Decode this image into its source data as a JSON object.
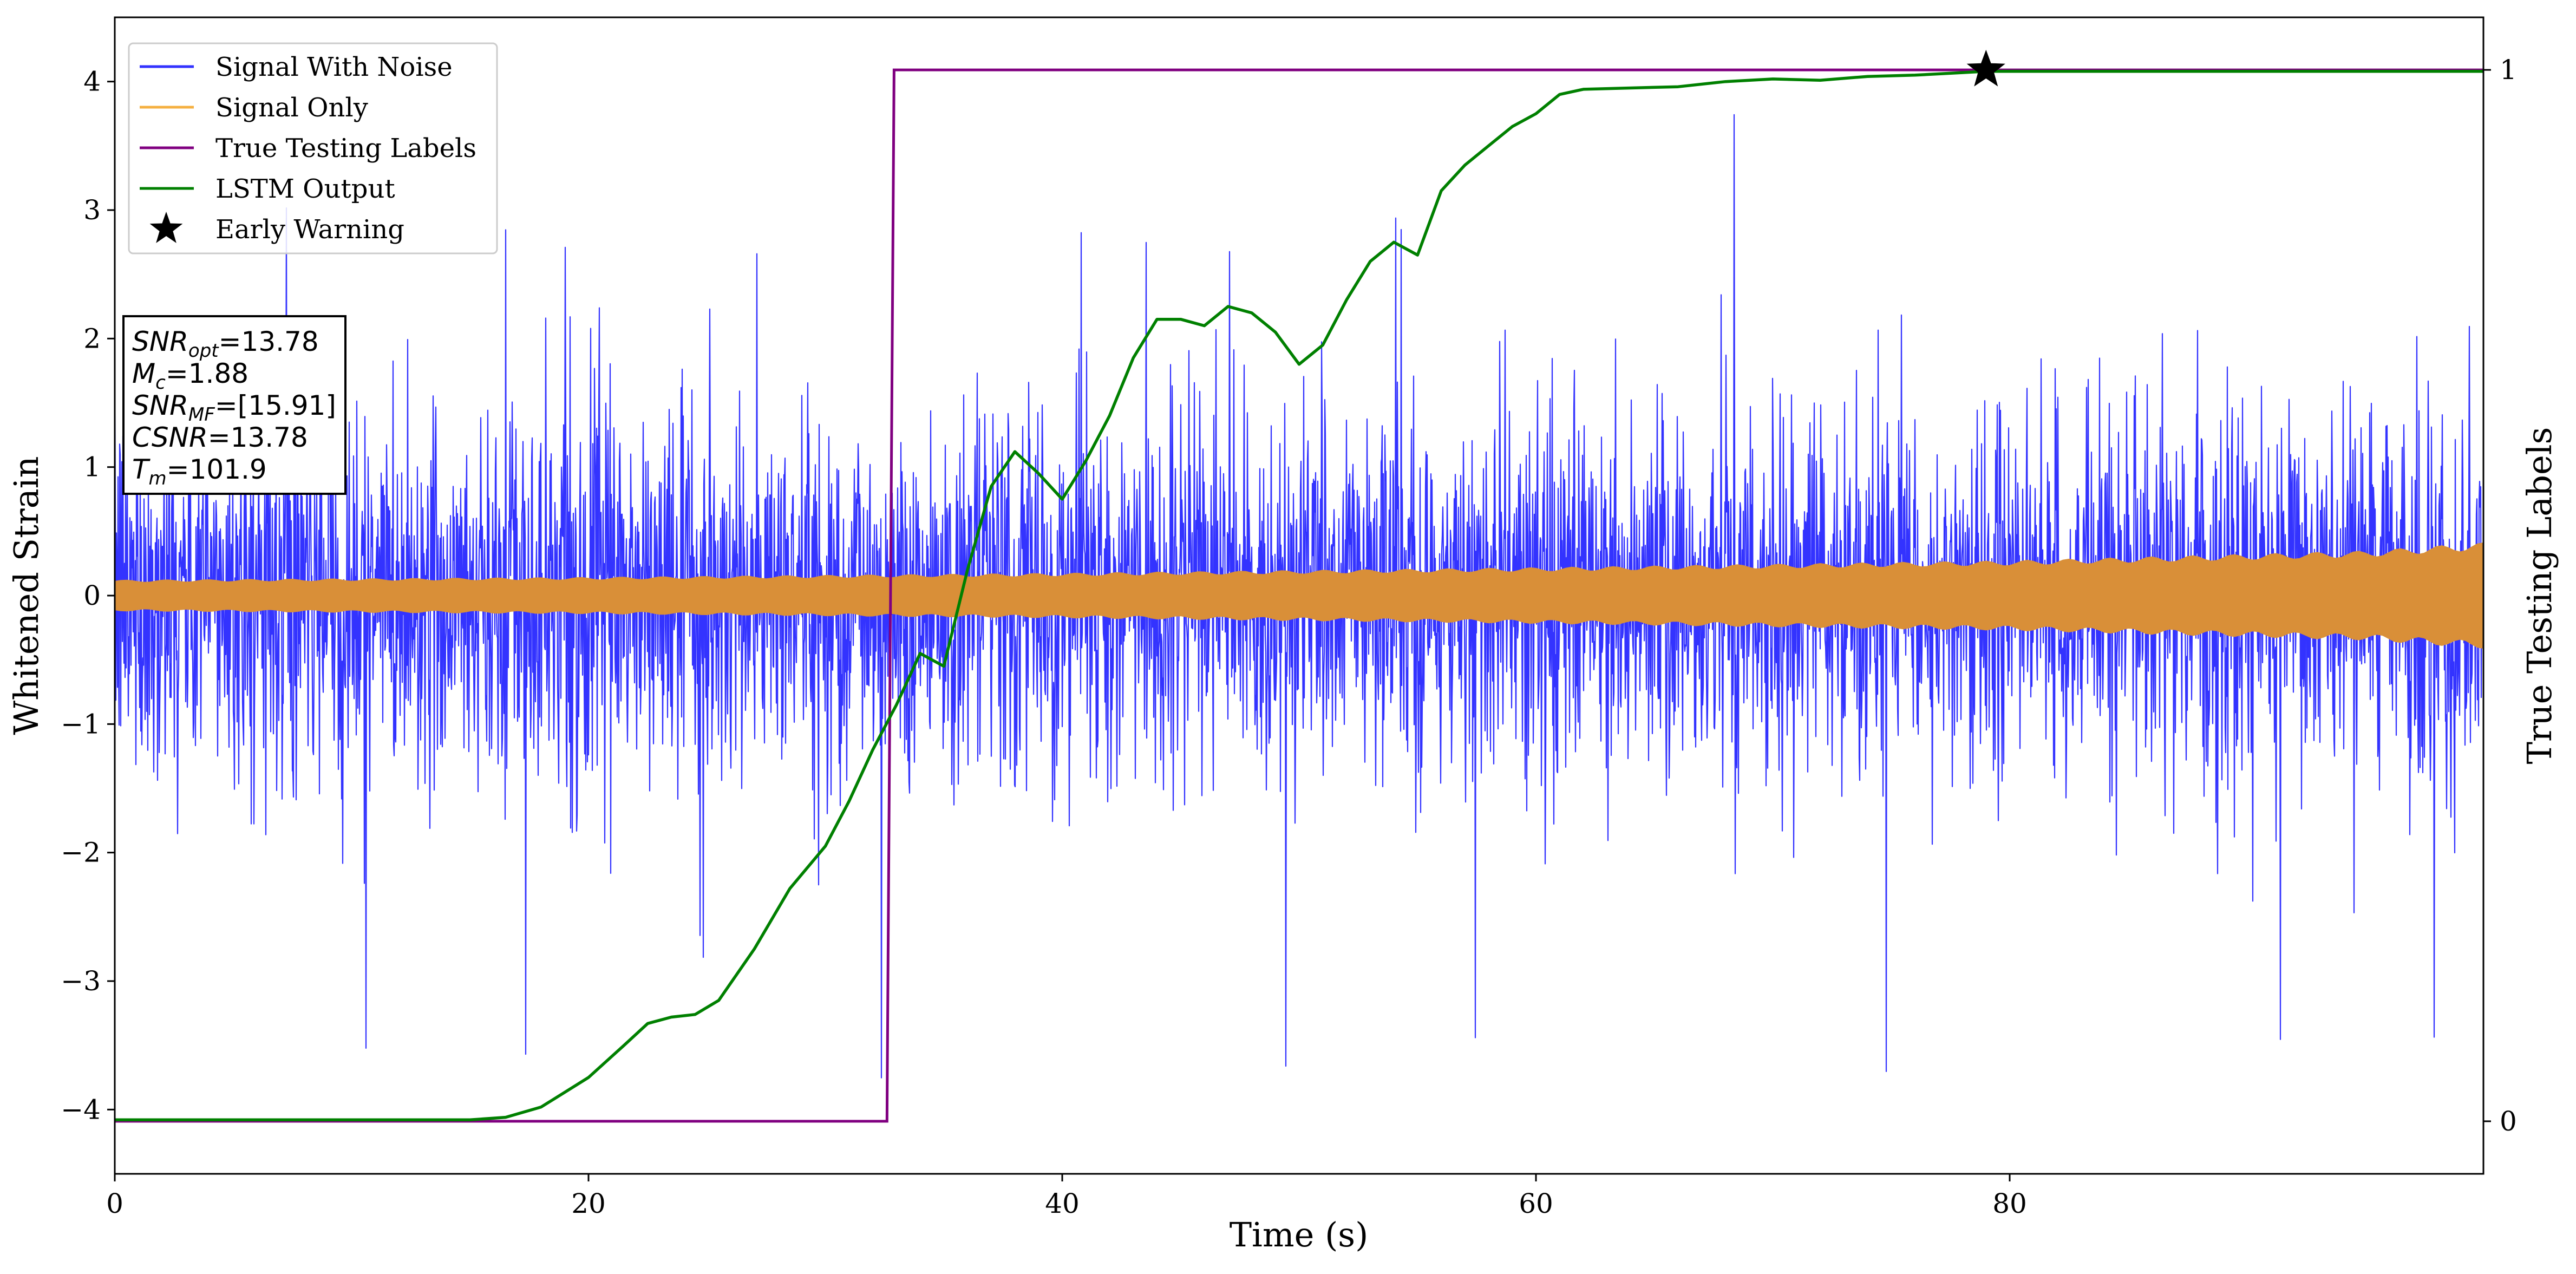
{
  "chart_data": {
    "type": "line",
    "xlabel": "Time (s)",
    "ylabel": "Whitened Strain",
    "ylabel_right": "True Testing Labels",
    "xlim": [
      0,
      100
    ],
    "ylim": [
      -4.5,
      4.5
    ],
    "ylim_right": [
      -0.05,
      1.05
    ],
    "x_ticks": [
      0,
      20,
      40,
      60,
      80
    ],
    "y_ticks": [
      -4,
      -3,
      -2,
      -1,
      0,
      1,
      2,
      3,
      4
    ],
    "y_ticks_right": [
      0,
      1
    ],
    "grid": false,
    "legend_position": "top-left",
    "legend": [
      {
        "label": "Signal With Noise",
        "color": "#3333ff",
        "marker": "line"
      },
      {
        "label": "Signal Only",
        "color": "#f5b041",
        "marker": "line"
      },
      {
        "label": "True Testing Labels",
        "color": "#800080",
        "marker": "line"
      },
      {
        "label": "LSTM Output",
        "color": "#008000",
        "marker": "line"
      },
      {
        "label": "Early Warning",
        "color": "#000000",
        "marker": "star"
      }
    ],
    "series": [
      {
        "name": "Signal With Noise",
        "color": "#3333ff",
        "axis": "left",
        "kind": "noise",
        "typical_abs_max": 2.3,
        "extreme_min": -3.85,
        "extreme_max": 4.05
      },
      {
        "name": "Signal Only",
        "color": "#d98f38",
        "axis": "left",
        "kind": "envelope",
        "x": [
          0,
          20,
          40,
          60,
          80,
          95,
          100
        ],
        "amplitude": [
          0.11,
          0.13,
          0.16,
          0.2,
          0.25,
          0.32,
          0.38
        ]
      },
      {
        "name": "True Testing Labels",
        "color": "#800080",
        "axis": "right",
        "kind": "step",
        "x": [
          0,
          32.6,
          32.9,
          100
        ],
        "y": [
          0,
          0,
          1,
          1
        ]
      },
      {
        "name": "LSTM Output",
        "color": "#008000",
        "axis": "left",
        "kind": "line",
        "x": [
          0,
          15,
          16.5,
          18,
          20,
          21.5,
          22.5,
          23.5,
          24.5,
          25.5,
          27,
          28.5,
          30,
          31,
          32,
          33,
          34,
          35,
          36,
          37,
          38,
          39,
          40,
          41,
          42,
          43,
          44,
          45,
          46,
          47,
          48,
          49,
          50,
          51,
          52,
          53,
          54,
          55,
          56,
          57,
          58,
          59,
          60,
          61,
          62,
          64,
          66,
          68,
          70,
          72,
          74,
          76,
          78,
          79,
          82,
          90,
          100
        ],
        "y": [
          -4.08,
          -4.08,
          -4.06,
          -3.98,
          -3.75,
          -3.5,
          -3.33,
          -3.28,
          -3.26,
          -3.15,
          -2.75,
          -2.28,
          -1.95,
          -1.6,
          -1.2,
          -0.85,
          -0.45,
          -0.55,
          0.2,
          0.85,
          1.12,
          0.95,
          0.75,
          1.05,
          1.4,
          1.85,
          2.15,
          2.15,
          2.1,
          2.25,
          2.2,
          2.05,
          1.8,
          1.95,
          2.3,
          2.6,
          2.75,
          2.65,
          3.15,
          3.35,
          3.5,
          3.65,
          3.75,
          3.9,
          3.94,
          3.95,
          3.96,
          4.0,
          4.02,
          4.01,
          4.04,
          4.05,
          4.07,
          4.08,
          4.08,
          4.08,
          4.08
        ]
      }
    ],
    "markers": [
      {
        "name": "Early Warning",
        "x": 79,
        "y": 4.09,
        "symbol": "star"
      }
    ],
    "annotation": {
      "lines": [
        {
          "base": "SNR",
          "sub": "opt",
          "value": "=13.78"
        },
        {
          "base": "M",
          "sub": "c",
          "value": "=1.88"
        },
        {
          "base": "SNR",
          "sub": "MF",
          "value": "=[15.91]"
        },
        {
          "base": "CSNR",
          "sub": "",
          "value": "=13.78"
        },
        {
          "base": "T",
          "sub": "m",
          "value": "=101.9"
        }
      ]
    }
  }
}
